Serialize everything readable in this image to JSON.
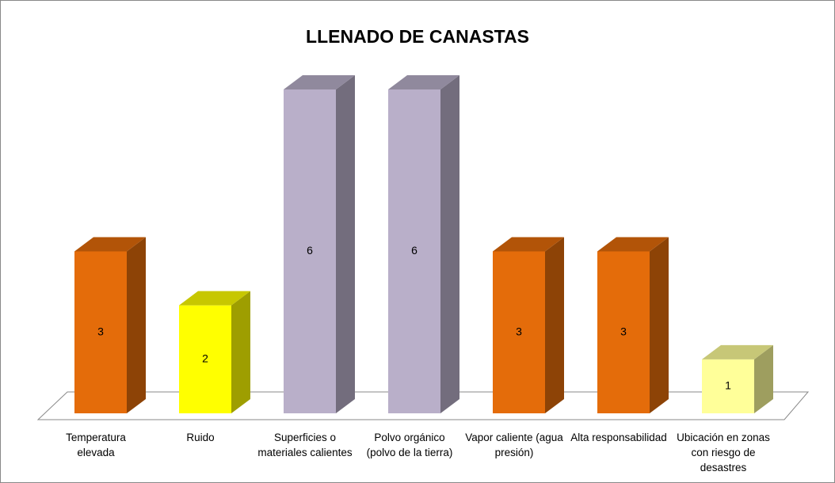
{
  "chart_data": {
    "type": "bar3d",
    "title": "LLENADO DE CANASTAS",
    "categories": [
      "Temperatura elevada",
      "Ruido",
      "Superficies o materiales calientes",
      "Polvo orgánico (polvo de la tierra)",
      "Vapor caliente (agua presión)",
      "Alta responsabilidad",
      "Ubicación en zonas con riesgo de desastres"
    ],
    "values": [
      3,
      2,
      6,
      6,
      3,
      3,
      1
    ],
    "colors": [
      "#e46c0a",
      "#ffff00",
      "#b9afc9",
      "#b9afc9",
      "#e46c0a",
      "#e46c0a",
      "#ffff99"
    ]
  }
}
